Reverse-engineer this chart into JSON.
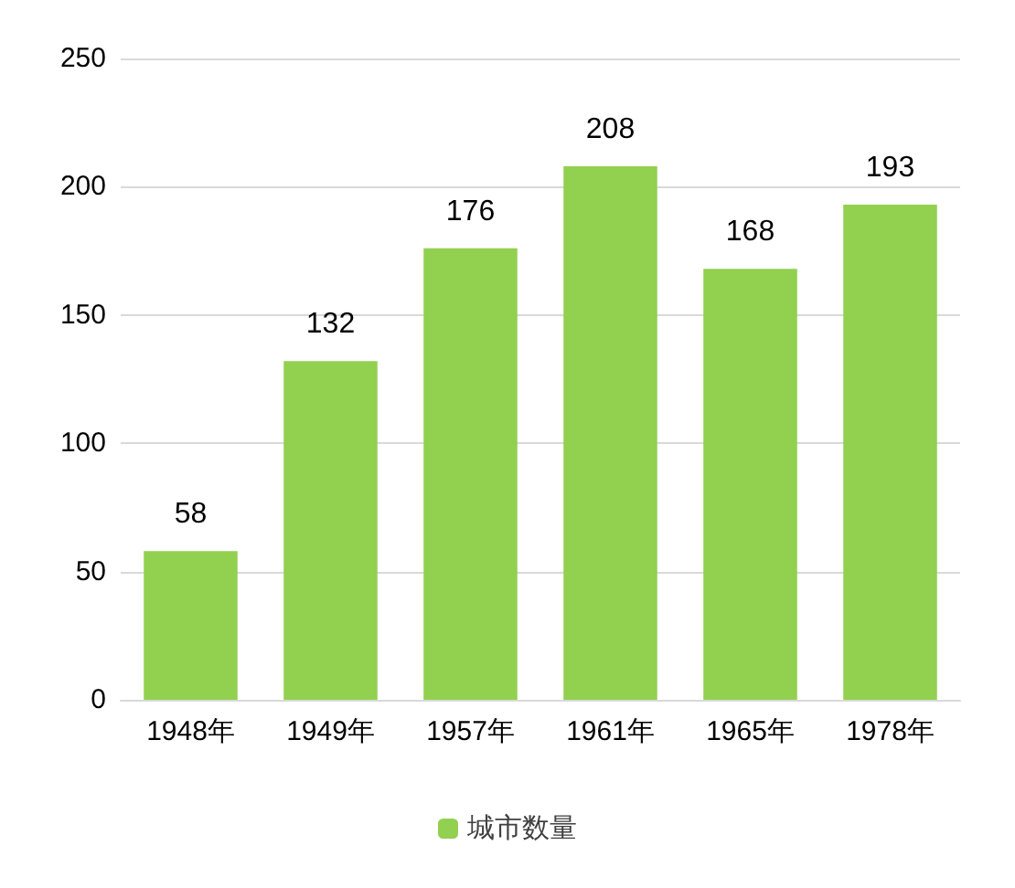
{
  "chart_data": {
    "type": "bar",
    "categories": [
      "1948年",
      "1949年",
      "1957年",
      "1961年",
      "1965年",
      "1978年"
    ],
    "series": [
      {
        "name": "城市数量",
        "color": "#92d050",
        "values": [
          58,
          132,
          176,
          208,
          168,
          193
        ]
      }
    ],
    "ylim": [
      0,
      250
    ],
    "yticks": [
      0,
      50,
      100,
      150,
      200,
      250
    ],
    "grid": "y",
    "legend": "bottom",
    "data_labels": true
  }
}
